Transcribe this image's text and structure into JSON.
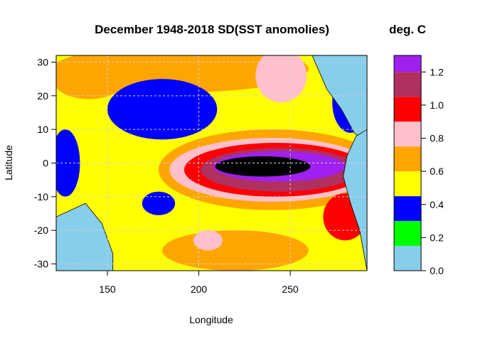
{
  "chart_data": {
    "type": "heatmap",
    "title": "December 1948-2018 SD(SST anomolies)",
    "colorbar_title": "deg. C",
    "xlabel": "Longitude",
    "ylabel": "Latitude",
    "xlim": [
      122,
      292
    ],
    "ylim": [
      -32,
      32
    ],
    "xticks": [
      150,
      200,
      250
    ],
    "yticks": [
      -30,
      -20,
      -10,
      0,
      10,
      20,
      30
    ],
    "grid": true,
    "grid_style": "dashed",
    "land_color": "#87ceeb",
    "legend_position": "right",
    "levels": [
      {
        "min": 0.0,
        "max": 0.15,
        "color": "#87ceeb"
      },
      {
        "min": 0.15,
        "max": 0.3,
        "color": "#00ff00"
      },
      {
        "min": 0.3,
        "max": 0.45,
        "color": "#0000ff"
      },
      {
        "min": 0.45,
        "max": 0.6,
        "color": "#ffff00"
      },
      {
        "min": 0.6,
        "max": 0.75,
        "color": "#ffa500"
      },
      {
        "min": 0.75,
        "max": 0.9,
        "color": "#ffc0cb"
      },
      {
        "min": 0.9,
        "max": 1.05,
        "color": "#ff0000"
      },
      {
        "min": 1.05,
        "max": 1.2,
        "color": "#b03060"
      },
      {
        "min": 1.2,
        "max": 1.3,
        "color": "#a020f0"
      },
      {
        "min": 1.3,
        "max": 1.35,
        "color": "#000000"
      }
    ],
    "colorbar_ticks": [
      "0.0",
      "0.2",
      "0.4",
      "0.6",
      "0.8",
      "1.0",
      "1.2"
    ],
    "colorbar_range": [
      0.0,
      1.3
    ],
    "background_value": 0.5,
    "features": [
      {
        "name": "equatorial-tongue-orange",
        "lon": 240,
        "lat": -2,
        "rlon": 62,
        "rlat": 12,
        "value": 0.65
      },
      {
        "name": "equatorial-tongue-pink",
        "lon": 240,
        "lat": -2,
        "rlon": 56,
        "rlat": 9.5,
        "value": 0.8
      },
      {
        "name": "equatorial-tongue-red",
        "lon": 242,
        "lat": -2,
        "rlon": 50,
        "rlat": 8,
        "value": 0.95
      },
      {
        "name": "equatorial-tongue-maroon",
        "lon": 244,
        "lat": -2,
        "rlon": 43,
        "rlat": 6.5,
        "value": 1.1
      },
      {
        "name": "equatorial-tongue-purple",
        "lon": 244,
        "lat": -1,
        "rlon": 36,
        "rlat": 4.5,
        "value": 1.25
      },
      {
        "name": "equatorial-core-black",
        "lon": 235,
        "lat": -1,
        "rlon": 26,
        "rlat": 3,
        "value": 1.33
      },
      {
        "name": "north-orange-band",
        "lon": 190,
        "lat": 28,
        "rlon": 70,
        "rlat": 7,
        "value": 0.65
      },
      {
        "name": "north-pink-band",
        "lon": 245,
        "lat": 26,
        "rlon": 14,
        "rlat": 8,
        "value": 0.8
      },
      {
        "name": "north-blue-patch",
        "lon": 180,
        "lat": 16,
        "rlon": 30,
        "rlat": 9,
        "value": 0.35
      },
      {
        "name": "ne-blue-patch",
        "lon": 283,
        "lat": 18,
        "rlon": 10,
        "rlat": 9,
        "value": 0.35
      },
      {
        "name": "west-blue-patch",
        "lon": 127,
        "lat": 0,
        "rlon": 8,
        "rlat": 10,
        "value": 0.35
      },
      {
        "name": "south-blue-patch",
        "lon": 178,
        "lat": -12,
        "rlon": 9,
        "rlat": 3.5,
        "value": 0.35
      },
      {
        "name": "south-orange-patch",
        "lon": 220,
        "lat": -26,
        "rlon": 40,
        "rlat": 6,
        "value": 0.65
      },
      {
        "name": "south-pink-patch",
        "lon": 205,
        "lat": -23,
        "rlon": 8,
        "rlat": 3,
        "value": 0.8
      },
      {
        "name": "coastal-red-strip",
        "lon": 280,
        "lat": -16,
        "rlon": 12,
        "rlat": 7,
        "value": 0.95
      },
      {
        "name": "northwest-orange",
        "lon": 140,
        "lat": 25,
        "rlon": 20,
        "rlat": 6,
        "value": 0.65
      }
    ],
    "land": [
      {
        "name": "australia",
        "points": [
          [
            122,
            -16
          ],
          [
            138,
            -12
          ],
          [
            147,
            -18
          ],
          [
            153,
            -27
          ],
          [
            153,
            -32
          ],
          [
            122,
            -32
          ]
        ]
      },
      {
        "name": "central-america",
        "points": [
          [
            262,
            32
          ],
          [
            270,
            22
          ],
          [
            278,
            16
          ],
          [
            285,
            9
          ],
          [
            292,
            6
          ],
          [
            292,
            32
          ]
        ]
      },
      {
        "name": "south-america",
        "points": [
          [
            292,
            -32
          ],
          [
            288,
            -20
          ],
          [
            283,
            -12
          ],
          [
            279,
            -4
          ],
          [
            281,
            2
          ],
          [
            286,
            8
          ],
          [
            292,
            10
          ]
        ]
      }
    ]
  }
}
